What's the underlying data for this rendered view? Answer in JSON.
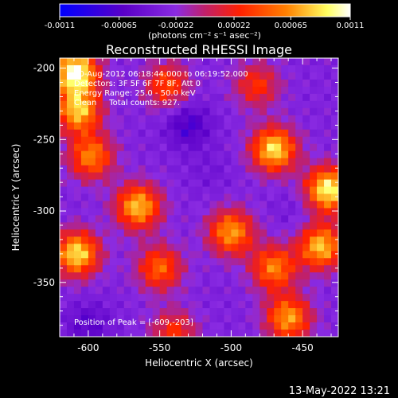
{
  "colorbar": {
    "tick_labels": [
      "-0.0011",
      "-0.00065",
      "-0.00022",
      "0.00022",
      "0.00065",
      "0.0011"
    ],
    "tick_values": [
      -0.0011,
      -0.00065,
      -0.00022,
      0.00022,
      0.00065,
      0.0011
    ],
    "units_label": "(photons cm⁻² s⁻¹ asec⁻²)",
    "range": [
      -0.0011,
      0.0011
    ],
    "colors": [
      "#0000ff",
      "#5a00c8",
      "#8a2be2",
      "#c0206a",
      "#ff2000",
      "#ff8000",
      "#ffff60",
      "#ffffff"
    ]
  },
  "plot": {
    "title": "Reconstructed RHESSI Image",
    "xlabel": "Heliocentric X (arcsec)",
    "ylabel": "Heliocentric Y (arcsec)",
    "info_lines": [
      "10-Aug-2012 06:18:44.000 to 06:19:52.000",
      "Detectors: 3F 5F 6F 7F 8F, Att 0",
      "Energy Range: 25.0 - 50.0 keV",
      "Clean     Total counts: 927."
    ],
    "peak_label": "Position of Peak = [-609,-203]",
    "timestamp": "13-May-2022 13:21"
  },
  "chart_data": {
    "type": "heatmap",
    "title": "Reconstructed RHESSI Image",
    "xlabel": "Heliocentric X (arcsec)",
    "ylabel": "Heliocentric Y (arcsec)",
    "xlim": [
      -620,
      -425
    ],
    "ylim": [
      -388,
      -193
    ],
    "xticks": [
      -600,
      -550,
      -500,
      -450
    ],
    "yticks": [
      -200,
      -250,
      -300,
      -350
    ],
    "xtick_labels": [
      "-600",
      "-550",
      "-500",
      "-450"
    ],
    "ytick_labels": [
      "-200",
      "-250",
      "-300",
      "-350"
    ],
    "peak": [
      -609,
      -203
    ],
    "value_range": [
      -0.0011,
      0.0011
    ],
    "bright_regions": [
      {
        "x": -609,
        "y": -203,
        "value": 0.0011
      },
      {
        "x": -607,
        "y": -230,
        "value": 0.0008
      },
      {
        "x": -598,
        "y": -262,
        "value": 0.0006
      },
      {
        "x": -565,
        "y": -297,
        "value": 0.0008
      },
      {
        "x": -608,
        "y": -330,
        "value": 0.0009
      },
      {
        "x": -550,
        "y": -340,
        "value": 0.0005
      },
      {
        "x": -545,
        "y": -212,
        "value": 0.0004
      },
      {
        "x": -470,
        "y": -257,
        "value": 0.0009
      },
      {
        "x": -432,
        "y": -285,
        "value": 0.001
      },
      {
        "x": -500,
        "y": -315,
        "value": 0.0007
      },
      {
        "x": -437,
        "y": -325,
        "value": 0.0008
      },
      {
        "x": -470,
        "y": -340,
        "value": 0.0006
      },
      {
        "x": -460,
        "y": -375,
        "value": 0.0007
      },
      {
        "x": -482,
        "y": -212,
        "value": 0.0003
      },
      {
        "x": -540,
        "y": -385,
        "value": 0.0003
      }
    ],
    "dark_regions": [
      {
        "x": -530,
        "y": -240,
        "value": -0.0007
      },
      {
        "x": -600,
        "y": -380,
        "value": -0.0006
      },
      {
        "x": -515,
        "y": -273,
        "value": -0.0004
      },
      {
        "x": -455,
        "y": -300,
        "value": -0.0004
      }
    ]
  }
}
